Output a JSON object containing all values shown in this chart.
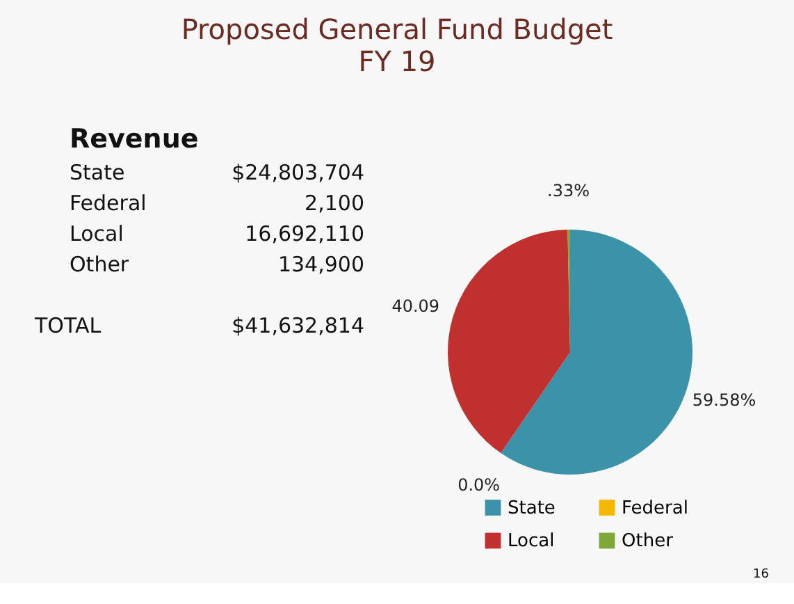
{
  "chart_data": {
    "type": "pie",
    "title": "Proposed General Fund Budget",
    "subtitle": "FY 19",
    "categories": [
      "State",
      "Federal",
      "Local",
      "Other"
    ],
    "values": [
      59.58,
      0.0,
      40.09,
      0.33
    ],
    "value_labels": [
      "59.58%",
      "0.0%",
      "40.09",
      ".33%"
    ],
    "colors": [
      "#3a93a8",
      "#f5b800",
      "#c0302f",
      "#7fa83a"
    ],
    "legend": "bottom",
    "annotations": [
      "Revenue",
      "State",
      "$24,803,704",
      "Federal",
      "2,100",
      "Local",
      "16,692,110",
      "Other",
      "134,900",
      "TOTAL",
      "$41,632,814",
      "16"
    ]
  }
}
